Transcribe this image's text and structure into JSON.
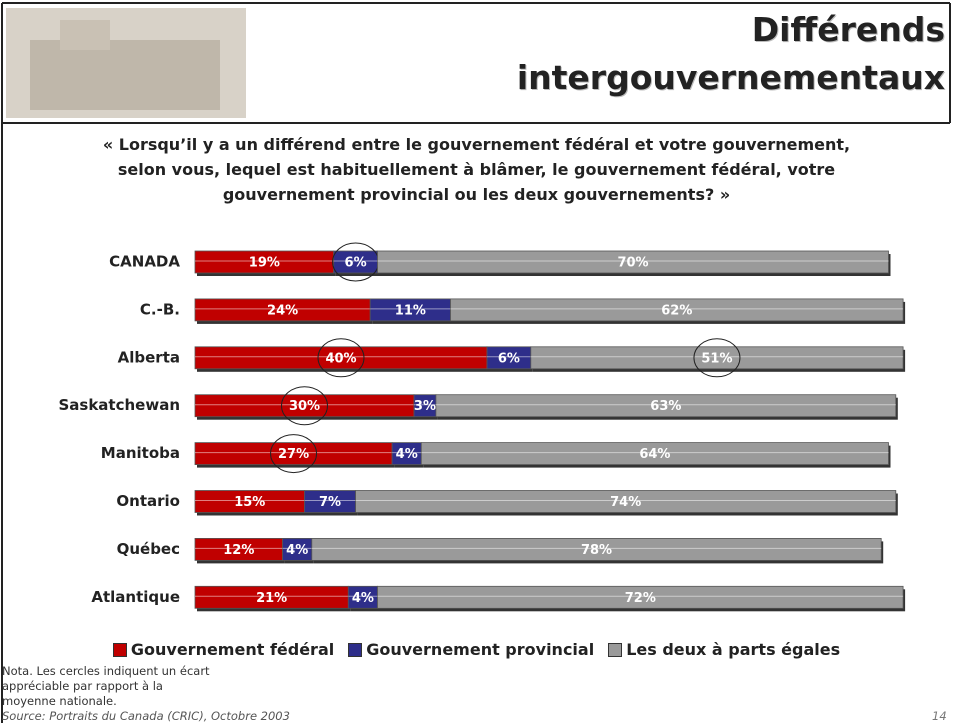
{
  "header": {
    "title_lines": [
      "Différends",
      "intergouvernementaux"
    ]
  },
  "question_lines": [
    "« Lorsqu’il y a un différend entre le gouvernement fédéral et votre gouvernement,",
    "selon vous, lequel est habituellement à blâmer, le gouvernement fédéral, votre",
    "gouvernement provincial ou les deux gouvernements? »"
  ],
  "chart_data": {
    "type": "stacked-bar-horizontal",
    "categories": [
      "CANADA",
      "C.-B.",
      "Alberta",
      "Saskatchewan",
      "Manitoba",
      "Ontario",
      "Québec",
      "Atlantique"
    ],
    "series": [
      {
        "name": "Gouvernement fédéral",
        "color": "#c00000",
        "values": [
          19,
          24,
          40,
          30,
          27,
          15,
          12,
          21
        ],
        "value_labels": [
          "19%",
          "24%",
          "40%",
          "30%",
          "27%",
          "15%",
          "12%",
          "21%"
        ]
      },
      {
        "name": "Gouvernement provincial",
        "color": "#2e2e8a",
        "values": [
          6,
          11,
          6,
          3,
          4,
          7,
          4,
          4
        ],
        "value_labels": [
          "6%",
          "11%",
          "6%",
          "3%",
          "4%",
          "7%",
          "4%",
          "4%"
        ]
      },
      {
        "name": "Les deux à parts égales",
        "color": "#9a9a9a",
        "values": [
          70,
          62,
          51,
          63,
          64,
          74,
          78,
          72
        ],
        "value_labels": [
          "70%",
          "62%",
          "51%",
          "63%",
          "64%",
          "74%",
          "78%",
          "72%"
        ]
      }
    ],
    "circled": [
      {
        "series": 1,
        "category": 0
      },
      {
        "series": 0,
        "category": 2
      },
      {
        "series": 2,
        "category": 2
      },
      {
        "series": 0,
        "category": 3
      },
      {
        "series": 0,
        "category": 4
      }
    ]
  },
  "notes": [
    "Nota. Les cercles indiquent un écart",
    "appréciable par rapport à la",
    "moyenne nationale."
  ],
  "source": "Source: Portraits du Canada (CRIC), Octobre 2003",
  "page_number": "14"
}
